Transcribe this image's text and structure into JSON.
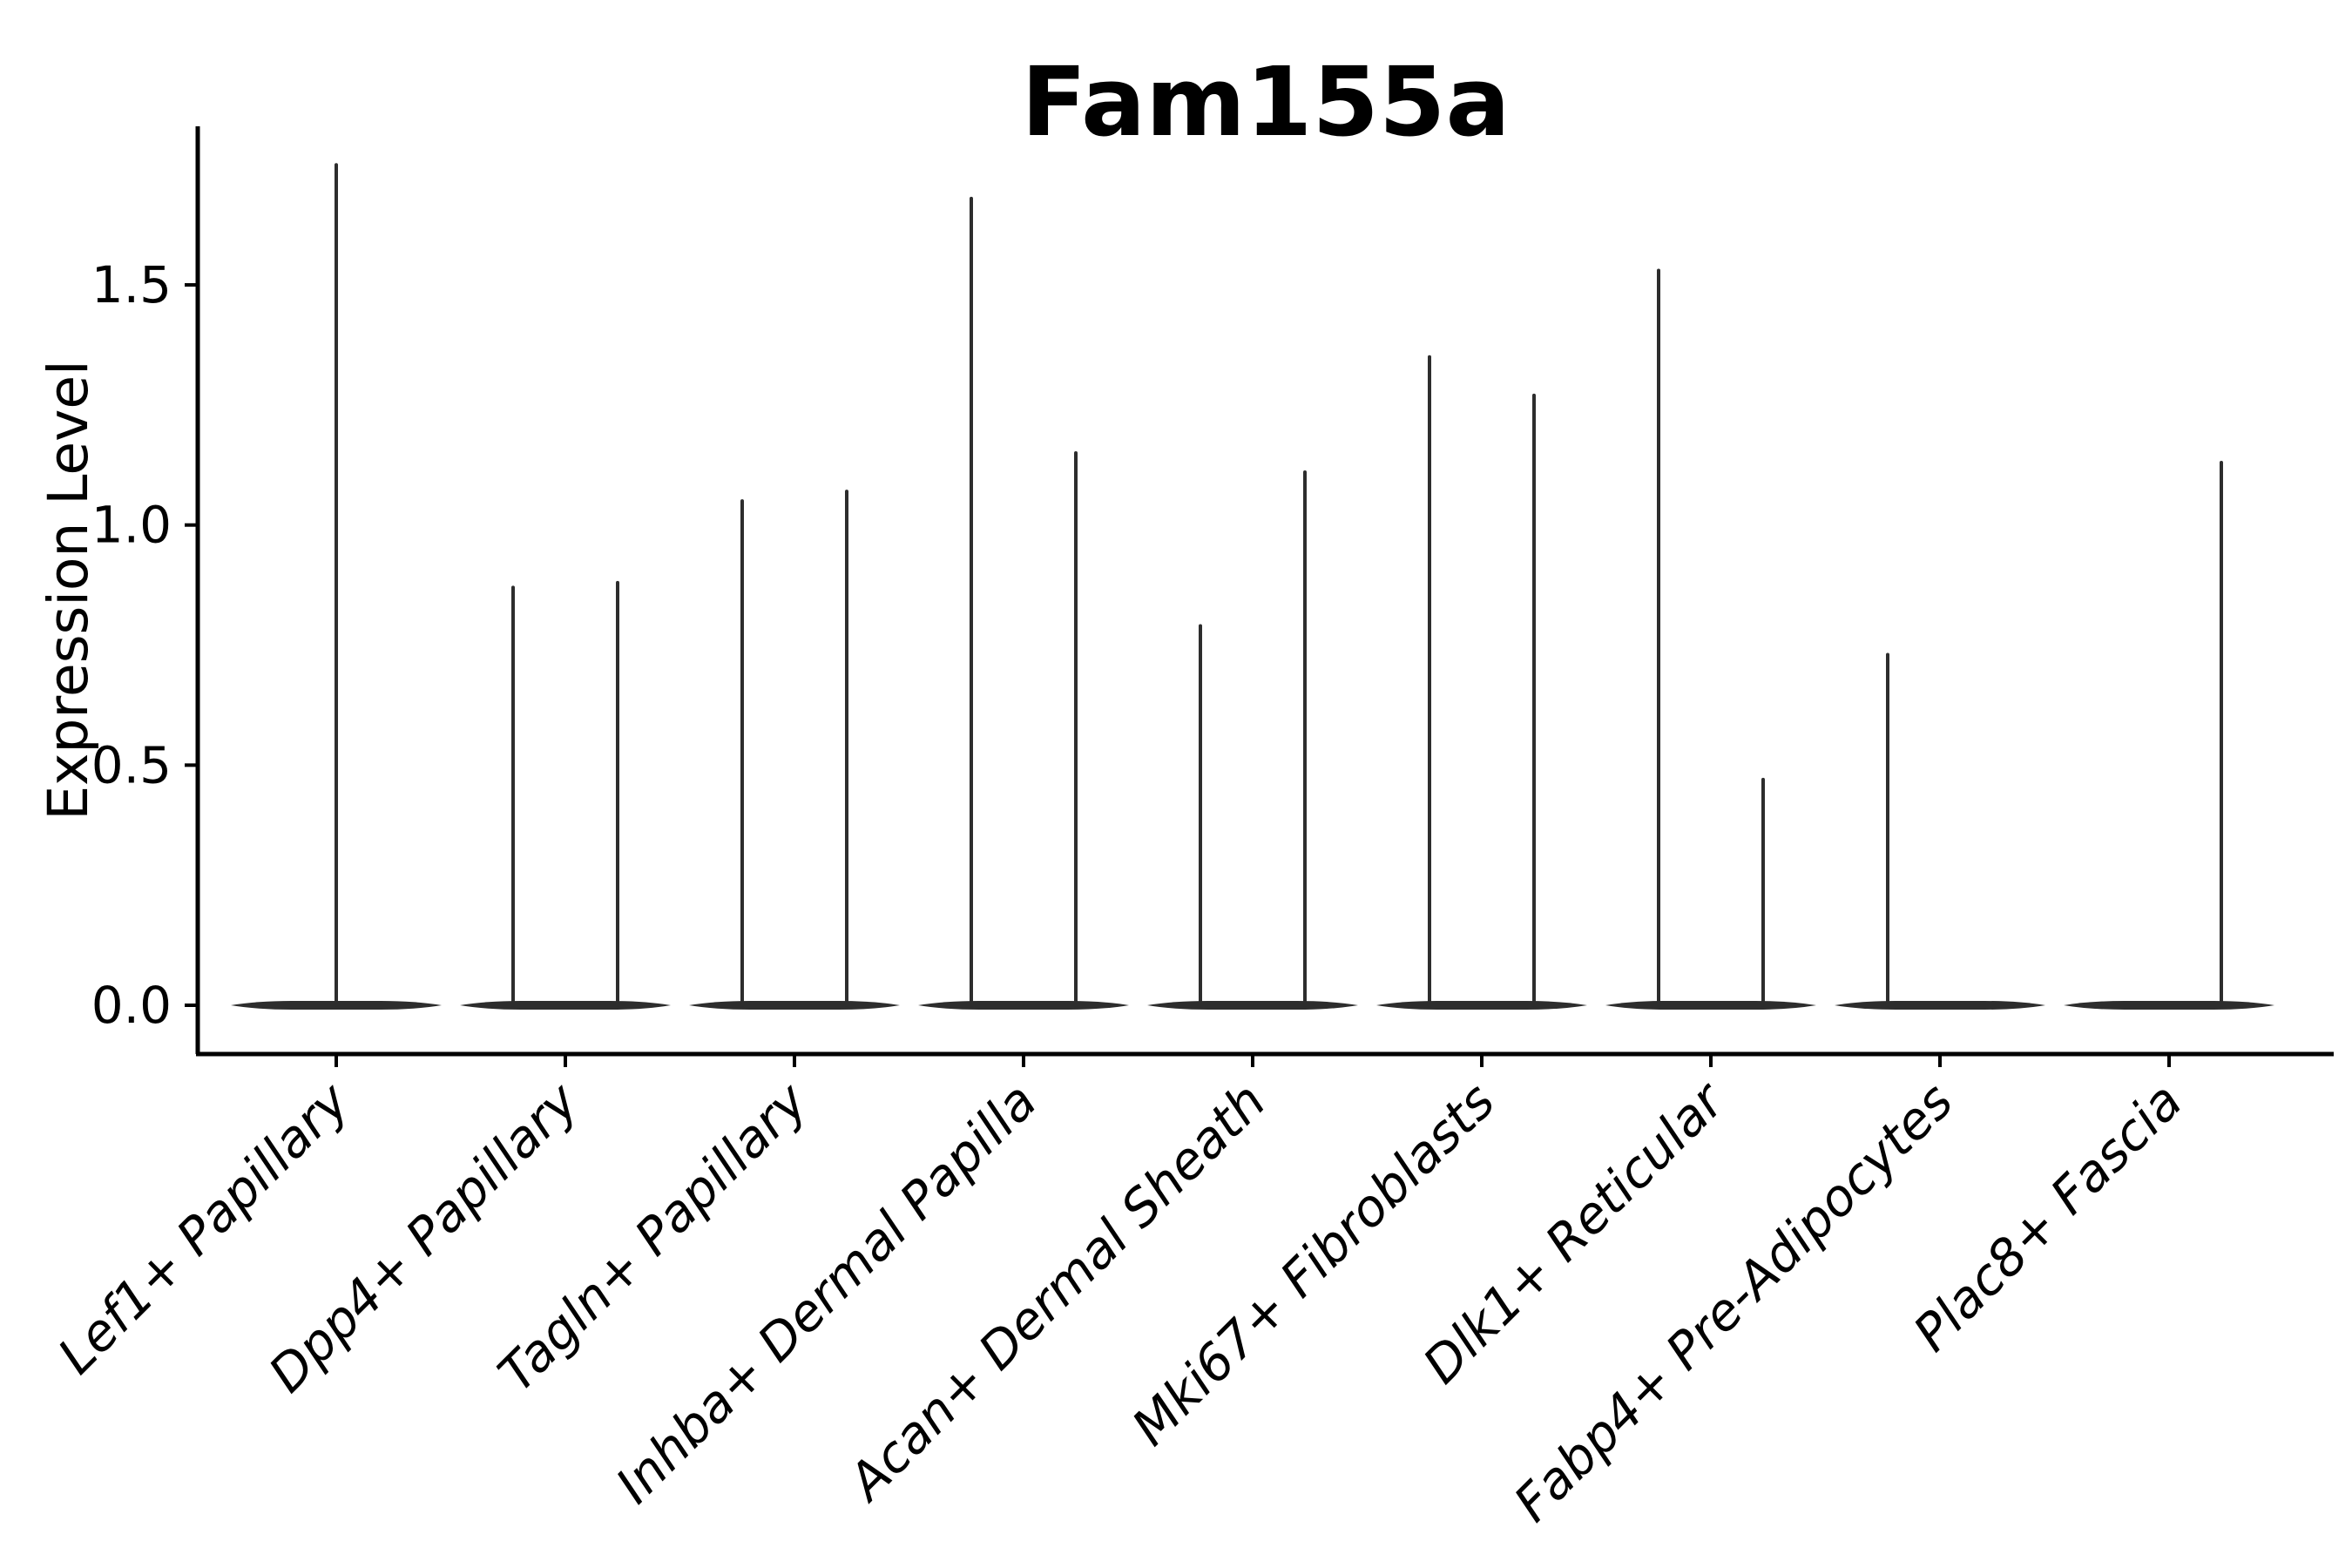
{
  "figure": {
    "title": "Fam155a",
    "background_color": "#ffffff"
  },
  "chart_data": {
    "type": "violin",
    "title": "Fam155a",
    "xlabel": "",
    "ylabel": "Expression Level",
    "ylim": [
      -0.1,
      1.83
    ],
    "y_ticks": [
      0.0,
      0.5,
      1.0,
      1.5
    ],
    "y_tick_labels": [
      "0.0",
      "0.5",
      "1.0",
      "1.5"
    ],
    "grid": false,
    "legend_position": "none",
    "x_tick_label_style": "italic, rotated 45deg",
    "categories": [
      "Lef1+ Papillary",
      "Dpp4+ Papillary",
      "Tagln+ Papillary",
      "Inhba+ Dermal Papilla",
      "Acan+ Dermal Sheath",
      "Mki67+ Fibroblasts",
      "Dlk1+ Reticular",
      "Fabp4+ Pre-Adipocytes",
      "Plac8+ Fascia"
    ],
    "description": "Violin plot of Fam155a expression; distributions are zero-inflated so each violin collapses to a flat base at 0 with a thin spike up to the maximum expression value.",
    "series": [
      {
        "category": "Lef1+ Papillary",
        "violins": [
          {
            "position": "center",
            "max": 1.75
          }
        ]
      },
      {
        "category": "Dpp4+ Papillary",
        "violins": [
          {
            "position": "left",
            "max": 0.87
          },
          {
            "position": "right",
            "max": 0.88
          }
        ]
      },
      {
        "category": "Tagln+ Papillary",
        "violins": [
          {
            "position": "left",
            "max": 1.05
          },
          {
            "position": "right",
            "max": 1.07
          }
        ]
      },
      {
        "category": "Inhba+ Dermal Papilla",
        "violins": [
          {
            "position": "left",
            "max": 1.68
          },
          {
            "position": "right",
            "max": 1.15
          }
        ]
      },
      {
        "category": "Acan+ Dermal Sheath",
        "violins": [
          {
            "position": "left",
            "max": 0.79
          },
          {
            "position": "right",
            "max": 1.11
          }
        ]
      },
      {
        "category": "Mki67+ Fibroblasts",
        "violins": [
          {
            "position": "left",
            "max": 1.35
          },
          {
            "position": "right",
            "max": 1.27
          }
        ]
      },
      {
        "category": "Dlk1+ Reticular",
        "violins": [
          {
            "position": "left",
            "max": 1.53
          },
          {
            "position": "right",
            "max": 0.47
          }
        ]
      },
      {
        "category": "Fabp4+ Pre-Adipocytes",
        "violins": [
          {
            "position": "left",
            "max": 0.73
          },
          {
            "position": "right",
            "max": 0.0
          }
        ]
      },
      {
        "category": "Plac8+ Fascia",
        "violins": [
          {
            "position": "left",
            "max": 0.0
          },
          {
            "position": "right",
            "max": 1.13
          }
        ]
      }
    ],
    "colors": {
      "violin": "#2d2d2d",
      "axis": "#000000",
      "text": "#000000",
      "background": "#ffffff"
    }
  }
}
